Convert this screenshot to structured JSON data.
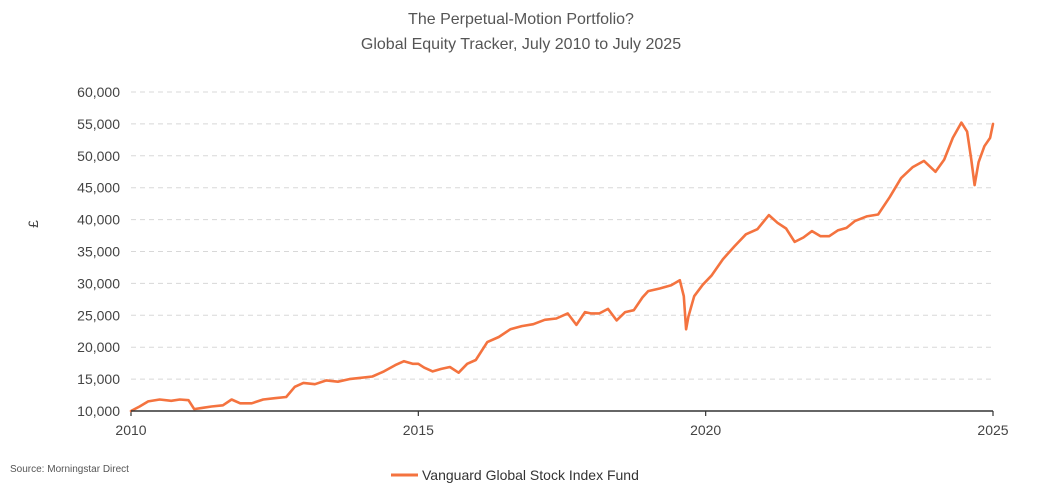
{
  "chart_data": {
    "type": "line",
    "title": "The Perpetual-Motion  Portfolio?",
    "subtitle": "Global  Equity Tracker, July 2010 to July 2025",
    "ylabel": "£",
    "xlabel": "",
    "source": "Source: Morningstar Direct",
    "xlim": [
      2010,
      2025
    ],
    "ylim": [
      10000,
      60000
    ],
    "x_ticks": [
      "2010",
      "2015",
      "2020",
      "2025"
    ],
    "y_ticks": [
      "10,000",
      "15,000",
      "20,000",
      "25,000",
      "30,000",
      "35,000",
      "40,000",
      "45,000",
      "50,000",
      "55,000",
      "60,000"
    ],
    "grid": "horizontal dashed",
    "legend_position": "bottom-center",
    "colors": {
      "series": "#f4733f",
      "axis": "#333333",
      "grid": "#d8d8d8"
    },
    "series": [
      {
        "name": "Vanguard Global Stock Index Fund",
        "x": [
          2010.0,
          2010.15,
          2010.3,
          2010.5,
          2010.7,
          2010.85,
          2011.0,
          2011.1,
          2011.25,
          2011.4,
          2011.6,
          2011.75,
          2011.9,
          2012.1,
          2012.3,
          2012.5,
          2012.7,
          2012.85,
          2013.0,
          2013.2,
          2013.4,
          2013.6,
          2013.8,
          2014.0,
          2014.2,
          2014.4,
          2014.6,
          2014.75,
          2014.9,
          2015.0,
          2015.1,
          2015.25,
          2015.4,
          2015.55,
          2015.7,
          2015.85,
          2016.0,
          2016.2,
          2016.4,
          2016.6,
          2016.8,
          2017.0,
          2017.2,
          2017.4,
          2017.6,
          2017.75,
          2017.9,
          2018.0,
          2018.15,
          2018.3,
          2018.45,
          2018.6,
          2018.75,
          2018.9,
          2019.0,
          2019.2,
          2019.4,
          2019.55,
          2019.62,
          2019.66,
          2019.7,
          2019.8,
          2019.95,
          2020.1,
          2020.3,
          2020.5,
          2020.7,
          2020.9,
          2021.1,
          2021.25,
          2021.4,
          2021.55,
          2021.7,
          2021.85,
          2022.0,
          2022.15,
          2022.3,
          2022.45,
          2022.6,
          2022.8,
          2023.0,
          2023.2,
          2023.4,
          2023.6,
          2023.8,
          2024.0,
          2024.15,
          2024.3,
          2024.45,
          2024.55,
          2024.62,
          2024.68,
          2024.75,
          2024.85,
          2024.95,
          2025.0
        ],
        "y": [
          10000,
          10700,
          11500,
          11800,
          11600,
          11800,
          11700,
          10300,
          10500,
          10700,
          10900,
          11800,
          11200,
          11200,
          11800,
          12000,
          12200,
          13800,
          14400,
          14200,
          14800,
          14600,
          15000,
          15200,
          15400,
          16200,
          17200,
          17800,
          17400,
          17400,
          16800,
          16200,
          16600,
          16900,
          16000,
          17400,
          18000,
          20800,
          21600,
          22800,
          23300,
          23600,
          24300,
          24500,
          25300,
          23500,
          25500,
          25300,
          25300,
          26000,
          24200,
          25500,
          25800,
          27800,
          28800,
          29200,
          29700,
          30500,
          28000,
          22800,
          24800,
          28000,
          29800,
          31200,
          33800,
          35800,
          37700,
          38500,
          40700,
          39500,
          38600,
          36500,
          37200,
          38200,
          37400,
          37400,
          38300,
          38700,
          39800,
          40500,
          40800,
          43500,
          46500,
          48200,
          49200,
          47500,
          49400,
          52800,
          55200,
          53800,
          49500,
          45400,
          49000,
          51500,
          52800,
          55000
        ]
      }
    ]
  }
}
